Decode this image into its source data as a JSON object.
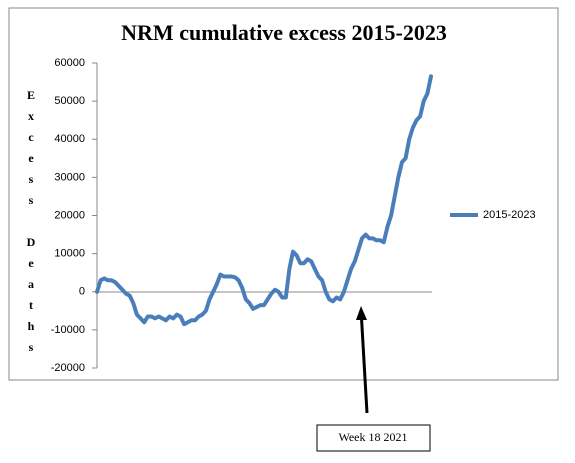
{
  "chart_data": {
    "type": "line",
    "title": "NRM cumulative excess 2015-2023",
    "ylabel": "Excess Deaths",
    "annotation": "Week 18 2021",
    "ylim": [
      -20000,
      60000
    ],
    "yticks": [
      -20000,
      -10000,
      0,
      10000,
      20000,
      30000,
      40000,
      50000,
      60000
    ],
    "legend": "right",
    "series": [
      {
        "name": "2015-2023",
        "color": "#4a7ebb",
        "values": [
          0,
          3000,
          3500,
          3000,
          3000,
          2500,
          1500,
          500,
          -500,
          -1000,
          -3000,
          -6000,
          -7000,
          -8000,
          -6500,
          -6500,
          -7000,
          -6500,
          -7000,
          -7500,
          -6500,
          -7000,
          -6000,
          -6500,
          -8500,
          -8000,
          -7500,
          -7500,
          -6500,
          -6000,
          -5000,
          -2000,
          0,
          2000,
          4500,
          4000,
          4000,
          4000,
          3800,
          3000,
          1000,
          -2000,
          -3000,
          -4500,
          -4000,
          -3500,
          -3500,
          -2000,
          -500,
          500,
          0,
          -1500,
          -1500,
          6000,
          10500,
          9500,
          7500,
          7500,
          8500,
          8000,
          6000,
          4000,
          3000,
          0,
          -2000,
          -2500,
          -1500,
          -2000,
          0,
          3000,
          6000,
          8000,
          11000,
          14000,
          15000,
          14000,
          14000,
          13500,
          13500,
          13000,
          17000,
          20000,
          25000,
          30000,
          34000,
          35000,
          40000,
          43000,
          45000,
          46000,
          50000,
          52000,
          56500
        ]
      }
    ]
  }
}
